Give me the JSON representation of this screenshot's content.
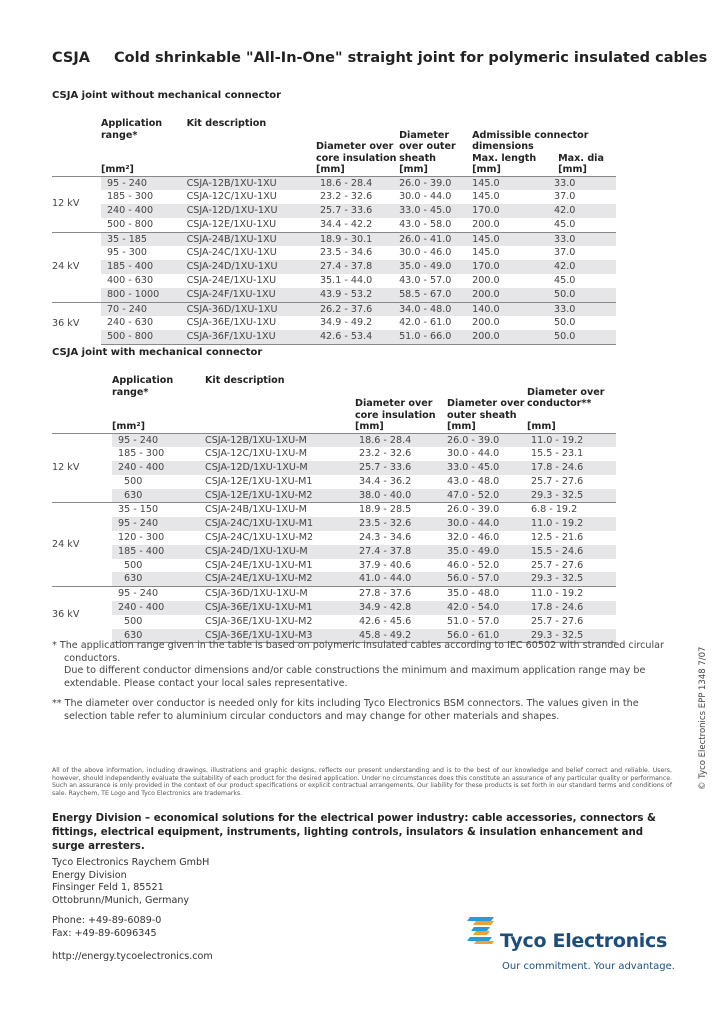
{
  "title": {
    "code": "CSJA",
    "text": "Cold shrinkable \"All-In-One\" straight joint for polymeric insulated cables"
  },
  "table1": {
    "heading": "CSJA joint without mechanical connector",
    "headers": {
      "app": "Application range*",
      "app_unit": "[mm²]",
      "kit": "Kit description",
      "core": "Diameter over core insulation",
      "core_unit": "[mm]",
      "sheath": "Diameter over outer sheath",
      "sheath_unit": "[mm]",
      "adm": "Admissible connector dimensions",
      "len": "Max. length",
      "len_unit": "[mm]",
      "dia": "Max. dia",
      "dia_unit": "[mm]"
    },
    "groups": [
      {
        "kv": "12 kV",
        "rows": [
          {
            "app": "95 - 240",
            "kit": "CSJA-12B/1XU-1XU",
            "core": "18.6 - 28.4",
            "sheath": "26.0 - 39.0",
            "len": "145.0",
            "dia": "33.0",
            "shaded": true
          },
          {
            "app": "185 - 300",
            "kit": "CSJA-12C/1XU-1XU",
            "core": "23.2 - 32.6",
            "sheath": "30.0 - 44.0",
            "len": "145.0",
            "dia": "37.0",
            "shaded": false
          },
          {
            "app": "240 - 400",
            "kit": "CSJA-12D/1XU-1XU",
            "core": "25.7 - 33.6",
            "sheath": "33.0 - 45.0",
            "len": "170.0",
            "dia": "42.0",
            "shaded": true
          },
          {
            "app": "500 - 800",
            "kit": "CSJA-12E/1XU-1XU",
            "core": "34.4 - 42.2",
            "sheath": "43.0 - 58.0",
            "len": "200.0",
            "dia": "45.0",
            "shaded": false
          }
        ]
      },
      {
        "kv": "24 kV",
        "rows": [
          {
            "app": "35 - 185",
            "kit": "CSJA-24B/1XU-1XU",
            "core": "18.9 - 30.1",
            "sheath": "26.0 - 41.0",
            "len": "145.0",
            "dia": "33.0",
            "shaded": true
          },
          {
            "app": "95 - 300",
            "kit": "CSJA-24C/1XU-1XU",
            "core": "23.5 - 34.6",
            "sheath": "30.0 - 46.0",
            "len": "145.0",
            "dia": "37.0",
            "shaded": false
          },
          {
            "app": "185 - 400",
            "kit": "CSJA-24D/1XU-1XU",
            "core": "27.4 - 37.8",
            "sheath": "35.0 - 49.0",
            "len": "170.0",
            "dia": "42.0",
            "shaded": true
          },
          {
            "app": "400 - 630",
            "kit": "CSJA-24E/1XU-1XU",
            "core": "35.1 - 44.0",
            "sheath": "43.0 - 57.0",
            "len": "200.0",
            "dia": "45.0",
            "shaded": false
          },
          {
            "app": "800 - 1000",
            "kit": "CSJA-24F/1XU-1XU",
            "core": "43.9 - 53.2",
            "sheath": "58.5 - 67.0",
            "len": "200.0",
            "dia": "50.0",
            "shaded": true
          }
        ]
      },
      {
        "kv": "36 kV",
        "rows": [
          {
            "app": "70 - 240",
            "kit": "CSJA-36D/1XU-1XU",
            "core": "26.2 - 37.6",
            "sheath": "34.0 - 48.0",
            "len": "140.0",
            "dia": "33.0",
            "shaded": true
          },
          {
            "app": "240 - 630",
            "kit": "CSJA-36E/1XU-1XU",
            "core": "34.9 - 49.2",
            "sheath": "42.0 - 61.0",
            "len": "200.0",
            "dia": "50.0",
            "shaded": false
          },
          {
            "app": "500 - 800",
            "kit": "CSJA-36F/1XU-1XU",
            "core": "42.6 - 53.4",
            "sheath": "51.0 - 66.0",
            "len": "200.0",
            "dia": "50.0",
            "shaded": true
          }
        ]
      }
    ]
  },
  "table2": {
    "heading": "CSJA joint with mechanical connector",
    "headers": {
      "app": "Application range*",
      "app_unit": "[mm²]",
      "kit": "Kit description",
      "core": "Diameter over core insulation",
      "core_unit": "[mm]",
      "sheath": "Diameter over outer sheath",
      "sheath_unit": "[mm]",
      "cond": "Diameter over conductor**",
      "cond_unit": "[mm]"
    },
    "groups": [
      {
        "kv": "12 kV",
        "rows": [
          {
            "app": "95 - 240",
            "kit": "CSJA-12B/1XU-1XU-M",
            "core": "18.6 - 28.4",
            "sheath": "26.0 - 39.0",
            "cond": "11.0 - 19.2",
            "shaded": true
          },
          {
            "app": "185 - 300",
            "kit": "CSJA-12C/1XU-1XU-M",
            "core": "23.2 - 32.6",
            "sheath": "30.0 - 44.0",
            "cond": "15.5 - 23.1",
            "shaded": false
          },
          {
            "app": "240 - 400",
            "kit": "CSJA-12D/1XU-1XU-M",
            "core": "25.7 - 33.6",
            "sheath": "33.0 - 45.0",
            "cond": "17.8 - 24.6",
            "shaded": true
          },
          {
            "app": "500",
            "kit": "CSJA-12E/1XU-1XU-M1",
            "core": "34.4 - 36.2",
            "sheath": "43.0 - 48.0",
            "cond": "25.7 - 27.6",
            "shaded": false
          },
          {
            "app": "630",
            "kit": "CSJA-12E/1XU-1XU-M2",
            "core": "38.0 - 40.0",
            "sheath": "47.0 - 52.0",
            "cond": "29.3 - 32.5",
            "shaded": true
          }
        ]
      },
      {
        "kv": "24 kV",
        "rows": [
          {
            "app": "35 - 150",
            "kit": "CSJA-24B/1XU-1XU-M",
            "core": "18.9 - 28.5",
            "sheath": "26.0 - 39.0",
            "cond": "6.8 - 19.2",
            "shaded": false
          },
          {
            "app": "95 - 240",
            "kit": "CSJA-24C/1XU-1XU-M1",
            "core": "23.5 - 32.6",
            "sheath": "30.0 - 44.0",
            "cond": "11.0 - 19.2",
            "shaded": true
          },
          {
            "app": "120 - 300",
            "kit": "CSJA-24C/1XU-1XU-M2",
            "core": "24.3 - 34.6",
            "sheath": "32.0 - 46.0",
            "cond": "12.5 - 21.6",
            "shaded": false
          },
          {
            "app": "185 - 400",
            "kit": "CSJA-24D/1XU-1XU-M",
            "core": "27.4 - 37.8",
            "sheath": "35.0 - 49.0",
            "cond": "15.5 - 24.6",
            "shaded": true
          },
          {
            "app": "500",
            "kit": "CSJA-24E/1XU-1XU-M1",
            "core": "37.9 - 40.6",
            "sheath": "46.0 - 52.0",
            "cond": "25.7 - 27.6",
            "shaded": false
          },
          {
            "app": "630",
            "kit": "CSJA-24E/1XU-1XU-M2",
            "core": "41.0 - 44.0",
            "sheath": "56.0 - 57.0",
            "cond": "29.3 - 32.5",
            "shaded": true
          }
        ]
      },
      {
        "kv": "36 kV",
        "rows": [
          {
            "app": "95 - 240",
            "kit": "CSJA-36D/1XU-1XU-M",
            "core": "27.8 - 37.6",
            "sheath": "35.0 - 48.0",
            "cond": "11.0 - 19.2",
            "shaded": false
          },
          {
            "app": "240 - 400",
            "kit": "CSJA-36E/1XU-1XU-M1",
            "core": "34.9 - 42.8",
            "sheath": "42.0 - 54.0",
            "cond": "17.8 - 24.6",
            "shaded": true
          },
          {
            "app": "500",
            "kit": "CSJA-36E/1XU-1XU-M2",
            "core": "42.6 - 45.6",
            "sheath": "51.0 - 57.0",
            "cond": "25.7 - 27.6",
            "shaded": false
          },
          {
            "app": "630",
            "kit": "CSJA-36E/1XU-1XU-M3",
            "core": "45.8 - 49.2",
            "sheath": "56.0 - 61.0",
            "cond": "29.3 - 32.5",
            "shaded": true
          }
        ]
      }
    ]
  },
  "notes": [
    "*  The application range given in the table is based on polymeric insulated cables according to IEC 60502 with stranded circular conductors.",
    "Due to different conductor dimensions and/or cable constructions the minimum and maximum application range may be extendable. Please contact your local sales representative.",
    "** The diameter over conductor is needed only for kits including Tyco Electronics BSM connectors. The values given in the selection table refer to aluminium circular conductors and may change for other materials and shapes."
  ],
  "disclaimer": "All of the above information, including drawings, illustrations and graphic designs, reflects our present understanding and is to the best of our knowledge and belief correct and reliable. Users, however, should independently evaluate the suitability of each product for the desired application. Under no circumstances does this constitute an assurance of any particular quality or performance. Such an assurance is only provided in the context of our product specifications or explicit contractual arrangements. Our liability for these products is set forth in our standard terms and conditions of sale. Raychem, TE Logo and Tyco Electronics are trademarks.",
  "division": "Energy Division – economical solutions for the electrical power industry: cable accessories, connectors & fittings, electrical equipment, instruments, lighting controls, insulators & insulation enhancement and surge arresters.",
  "address": [
    "Tyco Electronics Raychem GmbH",
    "Energy Division",
    "Finsinger Feld 1, 85521",
    "Ottobrunn/Munich, Germany"
  ],
  "phone": "Phone: +49-89-6089-0",
  "fax": "Fax: +49-89-6096345",
  "url": "http://energy.tycoelectronics.com",
  "side_text": "© Tyco Electronics EPP 1348 7/07",
  "logo": {
    "name": "Tyco Electronics",
    "tagline": "Our commitment. Your advantage.",
    "colors": {
      "blue": "#1d4e7a",
      "light_blue": "#2a9ad6",
      "orange": "#f0a030"
    }
  }
}
